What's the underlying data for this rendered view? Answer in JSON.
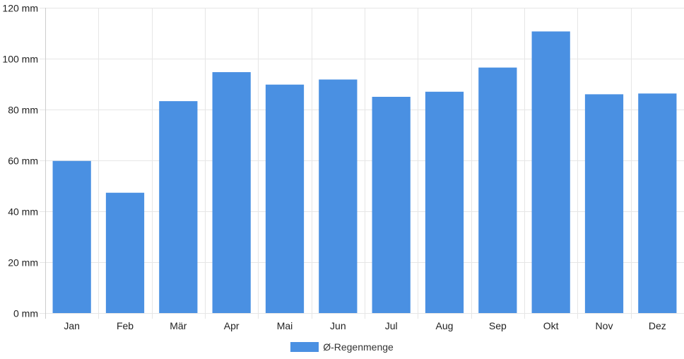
{
  "chart_data": {
    "type": "bar",
    "categories": [
      "Jan",
      "Feb",
      "Mär",
      "Apr",
      "Mai",
      "Jun",
      "Jul",
      "Aug",
      "Sep",
      "Okt",
      "Nov",
      "Dez"
    ],
    "series": [
      {
        "name": "Ø-Regenmenge",
        "values": [
          59.8,
          47.3,
          83.3,
          94.7,
          89.8,
          91.8,
          85.0,
          87.0,
          96.5,
          110.7,
          86.0,
          86.3
        ]
      }
    ],
    "ylim": [
      0,
      120
    ],
    "yticks": [
      {
        "value": 0,
        "label": "0 mm"
      },
      {
        "value": 20,
        "label": "20 mm"
      },
      {
        "value": 40,
        "label": "40 mm"
      },
      {
        "value": 60,
        "label": "60 mm"
      },
      {
        "value": 80,
        "label": "80 mm"
      },
      {
        "value": 100,
        "label": "100 mm"
      },
      {
        "value": 120,
        "label": "120 mm"
      }
    ],
    "grid": true,
    "legend_position": "bottom",
    "colors": {
      "bar": "#4a90e2",
      "grid": "#e6e6e6",
      "axis": "#cccccc"
    }
  }
}
